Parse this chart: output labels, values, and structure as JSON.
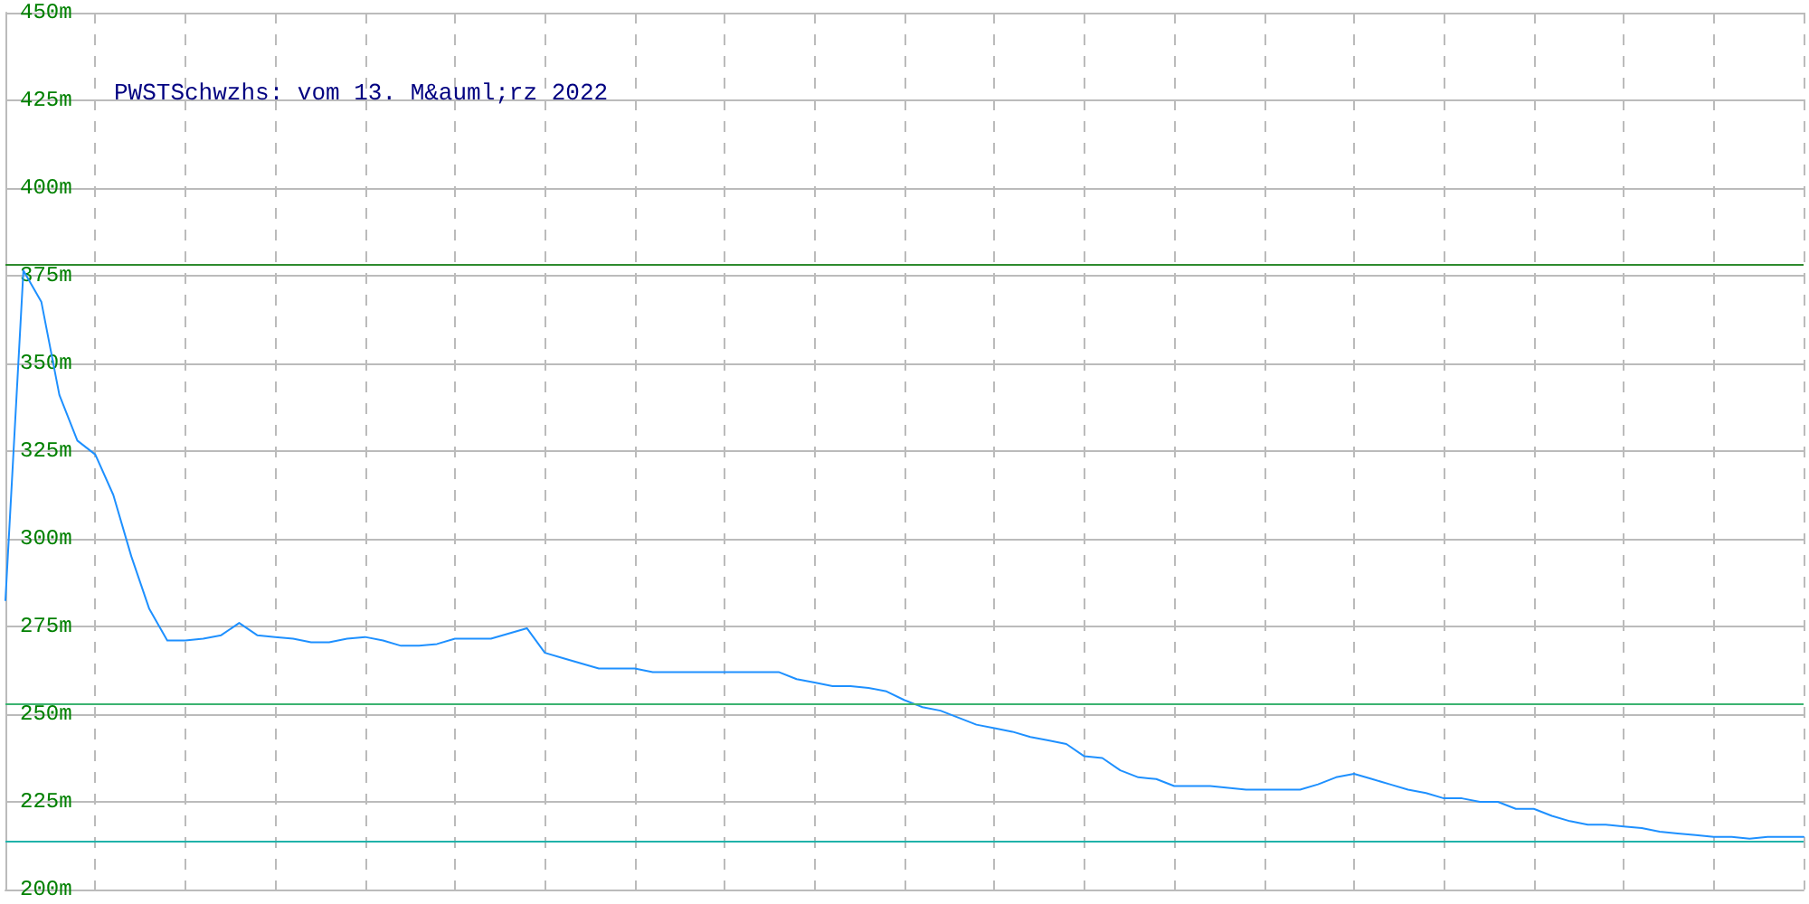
{
  "chart_data": {
    "type": "line",
    "title": "PWSTSchwzhs: vom 13. M&auml;rz 2022",
    "categories": [
      null,
      null,
      null,
      null,
      null,
      null,
      null,
      null,
      null,
      null,
      null,
      null,
      null,
      null,
      null,
      null,
      null,
      null,
      null,
      null,
      null,
      null,
      null,
      null,
      null,
      null,
      null,
      null,
      null,
      null,
      null,
      null,
      null,
      null,
      null,
      null,
      null,
      null,
      null,
      null,
      null,
      null,
      null,
      null,
      null,
      null,
      null,
      null,
      null,
      null,
      null,
      null,
      null,
      null,
      null,
      null,
      null,
      null,
      null,
      null,
      null,
      null,
      null,
      null,
      null,
      null,
      null,
      null,
      null,
      null,
      null,
      null,
      null,
      null,
      null,
      null,
      null,
      null,
      null,
      null,
      null,
      null,
      null,
      null,
      null,
      null,
      null,
      null,
      null,
      null,
      null,
      null,
      null,
      null,
      null,
      null,
      null,
      null,
      null,
      null,
      null
    ],
    "series": [
      {
        "color": "#1e90ff",
        "values": [
          282.5,
          376.5,
          367.5,
          341,
          328,
          324,
          312.5,
          295,
          280,
          271,
          271,
          271.5,
          272.5,
          276,
          272.5,
          272,
          271.5,
          270.5,
          270.5,
          271.5,
          272,
          271,
          269.5,
          269.5,
          270,
          271.5,
          271.5,
          271.5,
          273,
          274.5,
          267.5,
          266,
          264.5,
          263,
          263,
          263,
          262,
          262,
          262,
          262,
          262,
          262,
          262,
          262,
          260,
          259,
          258,
          258,
          257.5,
          256.5,
          254,
          252,
          251,
          249,
          247,
          246,
          245,
          243.5,
          242.5,
          241.5,
          238,
          237.5,
          234,
          232,
          231.5,
          229.5,
          229.5,
          229.5,
          229,
          228.5,
          228.5,
          228.5,
          228.5,
          230,
          232,
          233,
          231.5,
          230,
          228.5,
          227.5,
          226,
          226,
          225,
          225,
          223,
          223,
          221,
          219.5,
          218.5,
          218.5,
          218,
          217.5,
          216.5,
          216,
          215.5,
          215,
          215,
          214.5,
          215,
          215,
          215
        ]
      }
    ],
    "ylim": [
      200,
      450
    ],
    "yticks": [
      {
        "value": 200,
        "label": "200m"
      },
      {
        "value": 225,
        "label": "225m"
      },
      {
        "value": 250,
        "label": "250m"
      },
      {
        "value": 275,
        "label": "275m"
      },
      {
        "value": 300,
        "label": "300m"
      },
      {
        "value": 325,
        "label": "325m"
      },
      {
        "value": 350,
        "label": "350m"
      },
      {
        "value": 375,
        "label": "375m"
      },
      {
        "value": 400,
        "label": "400m"
      },
      {
        "value": 425,
        "label": "425m"
      },
      {
        "value": 450,
        "label": "450m"
      }
    ],
    "ref_lines": [
      {
        "axis": "y",
        "value": 378,
        "color": "#2e8b2e"
      },
      {
        "axis": "y",
        "value": 253,
        "color": "#3cb371"
      },
      {
        "axis": "y",
        "value": 214,
        "color": "#20b2aa"
      }
    ],
    "grid": true,
    "marker": "none",
    "line_style": "solid"
  }
}
